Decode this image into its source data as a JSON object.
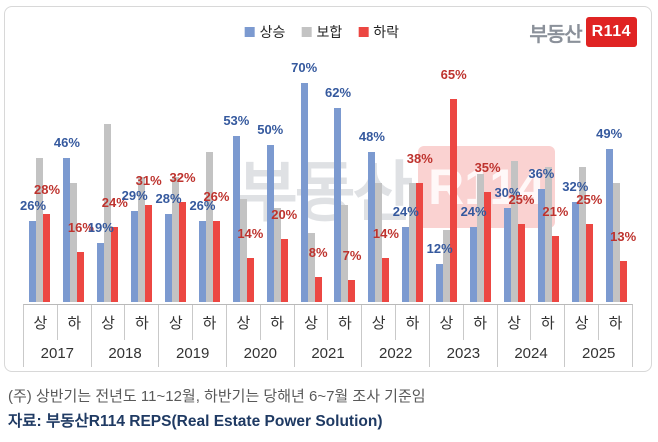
{
  "logo": {
    "prefix": "부동산",
    "badge": "R114"
  },
  "watermark": {
    "prefix": "부동산",
    "badge": "R114"
  },
  "legend": {
    "items": [
      {
        "label": "상승",
        "color": "#7c9ad0"
      },
      {
        "label": "보합",
        "color": "#c3c3c3"
      },
      {
        "label": "하락",
        "color": "#ec4742"
      }
    ]
  },
  "axis": {
    "half_labels": [
      "상",
      "하"
    ]
  },
  "footnotes": {
    "note": "(주) 상반기는 전년도 11~12월, 하반기는 당해년 6~7월 조사 기준임",
    "source": "자료: 부동산R114 REPS(Real Estate Power Solution)"
  },
  "chart_data": {
    "type": "bar",
    "title": "",
    "unit": "%",
    "ylim": [
      0,
      100
    ],
    "grid": false,
    "legend_position": "top-center",
    "series_names": [
      "상승",
      "보합",
      "하락"
    ],
    "series_colors": {
      "상승": "#7c9ad0",
      "보합": "#c3c3c3",
      "하락": "#ec4742"
    },
    "label_colors": {
      "상승": "#35599e",
      "하락": "#be332e"
    },
    "flat_values_estimated": true,
    "years": [
      {
        "year": "2017",
        "halves": [
          {
            "half": "상",
            "rise": 26,
            "flat": 46,
            "fall": 28
          },
          {
            "half": "하",
            "rise": 46,
            "flat": 38,
            "fall": 16
          }
        ]
      },
      {
        "year": "2018",
        "halves": [
          {
            "half": "상",
            "rise": 19,
            "flat": 57,
            "fall": 24
          },
          {
            "half": "하",
            "rise": 29,
            "flat": 40,
            "fall": 31
          }
        ]
      },
      {
        "year": "2019",
        "halves": [
          {
            "half": "상",
            "rise": 28,
            "flat": 40,
            "fall": 32
          },
          {
            "half": "하",
            "rise": 26,
            "flat": 48,
            "fall": 26
          }
        ]
      },
      {
        "year": "2020",
        "halves": [
          {
            "half": "상",
            "rise": 53,
            "flat": 33,
            "fall": 14
          },
          {
            "half": "하",
            "rise": 50,
            "flat": 30,
            "fall": 20
          }
        ]
      },
      {
        "year": "2021",
        "halves": [
          {
            "half": "상",
            "rise": 70,
            "flat": 22,
            "fall": 8
          },
          {
            "half": "하",
            "rise": 62,
            "flat": 31,
            "fall": 7
          }
        ]
      },
      {
        "year": "2022",
        "halves": [
          {
            "half": "상",
            "rise": 48,
            "flat": 38,
            "fall": 14
          },
          {
            "half": "하",
            "rise": 24,
            "flat": 38,
            "fall": 38
          }
        ]
      },
      {
        "year": "2023",
        "halves": [
          {
            "half": "상",
            "rise": 12,
            "flat": 23,
            "fall": 65
          },
          {
            "half": "하",
            "rise": 24,
            "flat": 41,
            "fall": 35
          }
        ]
      },
      {
        "year": "2024",
        "halves": [
          {
            "half": "상",
            "rise": 30,
            "flat": 45,
            "fall": 25
          },
          {
            "half": "하",
            "rise": 36,
            "flat": 43,
            "fall": 21
          }
        ]
      },
      {
        "year": "2025",
        "halves": [
          {
            "half": "상",
            "rise": 32,
            "flat": 43,
            "fall": 25
          },
          {
            "half": "하",
            "rise": 49,
            "flat": 38,
            "fall": 13
          }
        ]
      }
    ]
  }
}
